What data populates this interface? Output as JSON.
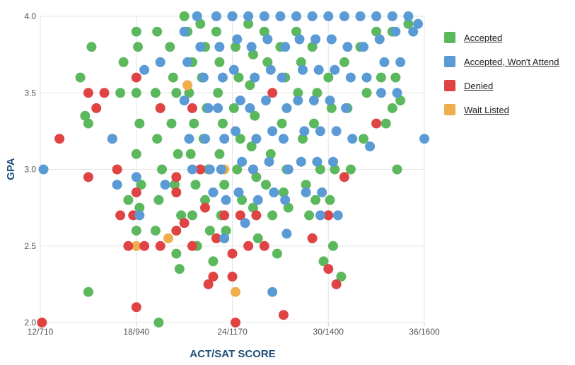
{
  "chart_data": {
    "type": "scatter",
    "title": "",
    "xlabel": "ACT/SAT SCORE",
    "ylabel": "GPA",
    "xlim": [
      12,
      36
    ],
    "ylim": [
      2.0,
      4.0
    ],
    "x_ticks": [
      {
        "value": 12,
        "label": "12/710"
      },
      {
        "value": 18,
        "label": "18/940"
      },
      {
        "value": 24,
        "label": "24/1170"
      },
      {
        "value": 30,
        "label": "30/1400"
      },
      {
        "value": 36,
        "label": "36/1600"
      }
    ],
    "y_ticks": [
      {
        "value": 2.0,
        "label": "2.0"
      },
      {
        "value": 2.5,
        "label": "2.5"
      },
      {
        "value": 3.0,
        "label": "3.0"
      },
      {
        "value": 3.5,
        "label": "3.5"
      },
      {
        "value": 4.0,
        "label": "4.0"
      }
    ],
    "grid": true,
    "legend_position": "right",
    "series": [
      {
        "name": "Accepted",
        "color": "#5cb85c",
        "points": [
          [
            14.5,
            3.6
          ],
          [
            15.2,
            3.8
          ],
          [
            15.0,
            3.3
          ],
          [
            14.8,
            3.35
          ],
          [
            17.2,
            3.7
          ],
          [
            17.0,
            3.5
          ],
          [
            15.0,
            2.2
          ],
          [
            17.5,
            2.8
          ],
          [
            18.0,
            3.9
          ],
          [
            18.1,
            3.8
          ],
          [
            18.0,
            3.5
          ],
          [
            18.2,
            3.3
          ],
          [
            18.0,
            3.1
          ],
          [
            18.3,
            2.9
          ],
          [
            18.2,
            2.75
          ],
          [
            18.0,
            2.6
          ],
          [
            19.3,
            3.9
          ],
          [
            19.5,
            3.7
          ],
          [
            19.2,
            3.5
          ],
          [
            19.5,
            3.4
          ],
          [
            19.3,
            3.2
          ],
          [
            19.6,
            3.0
          ],
          [
            19.4,
            2.8
          ],
          [
            19.2,
            2.6
          ],
          [
            19.4,
            2.0
          ],
          [
            20.1,
            3.8
          ],
          [
            20.3,
            3.6
          ],
          [
            20.5,
            3.5
          ],
          [
            20.2,
            3.3
          ],
          [
            20.6,
            3.1
          ],
          [
            20.4,
            2.9
          ],
          [
            20.8,
            2.7
          ],
          [
            20.5,
            2.45
          ],
          [
            20.7,
            2.35
          ],
          [
            21.0,
            4.0
          ],
          [
            21.2,
            3.9
          ],
          [
            21.5,
            3.7
          ],
          [
            21.3,
            3.5
          ],
          [
            21.6,
            3.3
          ],
          [
            21.4,
            3.1
          ],
          [
            21.7,
            2.9
          ],
          [
            21.5,
            2.7
          ],
          [
            21.8,
            2.5
          ],
          [
            22.0,
            3.95
          ],
          [
            22.3,
            3.8
          ],
          [
            22.1,
            3.6
          ],
          [
            22.4,
            3.4
          ],
          [
            22.2,
            3.2
          ],
          [
            22.5,
            3.0
          ],
          [
            22.3,
            2.8
          ],
          [
            22.6,
            2.6
          ],
          [
            22.8,
            2.4
          ],
          [
            23.0,
            3.9
          ],
          [
            23.2,
            3.7
          ],
          [
            23.1,
            3.5
          ],
          [
            23.4,
            3.3
          ],
          [
            23.2,
            3.1
          ],
          [
            23.5,
            2.9
          ],
          [
            23.3,
            2.7
          ],
          [
            23.6,
            2.6
          ],
          [
            24.0,
            4.0
          ],
          [
            24.2,
            3.8
          ],
          [
            24.4,
            3.6
          ],
          [
            24.1,
            3.4
          ],
          [
            24.5,
            3.2
          ],
          [
            24.3,
            3.0
          ],
          [
            24.6,
            2.8
          ],
          [
            25.0,
            3.95
          ],
          [
            25.3,
            3.75
          ],
          [
            25.1,
            3.55
          ],
          [
            25.4,
            3.35
          ],
          [
            25.2,
            3.15
          ],
          [
            25.5,
            2.95
          ],
          [
            25.3,
            2.75
          ],
          [
            25.6,
            2.55
          ],
          [
            26.0,
            3.9
          ],
          [
            26.2,
            3.7
          ],
          [
            26.4,
            3.1
          ],
          [
            26.1,
            2.9
          ],
          [
            26.5,
            2.7
          ],
          [
            26.8,
            2.45
          ],
          [
            27.0,
            3.8
          ],
          [
            27.3,
            3.6
          ],
          [
            27.1,
            3.3
          ],
          [
            27.4,
            3.0
          ],
          [
            27.2,
            2.85
          ],
          [
            27.5,
            2.75
          ],
          [
            28.0,
            3.9
          ],
          [
            28.3,
            3.7
          ],
          [
            28.1,
            3.5
          ],
          [
            28.4,
            3.2
          ],
          [
            28.6,
            2.9
          ],
          [
            28.8,
            2.7
          ],
          [
            29.0,
            3.8
          ],
          [
            29.3,
            3.5
          ],
          [
            29.1,
            3.3
          ],
          [
            29.5,
            3.0
          ],
          [
            29.2,
            2.8
          ],
          [
            29.7,
            2.4
          ],
          [
            30.0,
            3.6
          ],
          [
            30.2,
            3.4
          ],
          [
            30.4,
            3.0
          ],
          [
            30.1,
            2.8
          ],
          [
            30.3,
            2.5
          ],
          [
            30.8,
            2.3
          ],
          [
            31.0,
            3.7
          ],
          [
            31.2,
            3.4
          ],
          [
            31.4,
            3.0
          ],
          [
            32.0,
            3.8
          ],
          [
            32.4,
            3.5
          ],
          [
            32.2,
            3.2
          ],
          [
            33.0,
            3.9
          ],
          [
            33.3,
            3.6
          ],
          [
            33.6,
            3.3
          ],
          [
            34.0,
            3.9
          ],
          [
            34.2,
            3.6
          ],
          [
            34.5,
            3.45
          ],
          [
            34.3,
            3.0
          ],
          [
            34.0,
            3.4
          ],
          [
            35.0,
            3.95
          ]
        ]
      },
      {
        "name": "Accepted, Won't Attend",
        "color": "#5b9bd5",
        "points": [
          [
            12.2,
            3.0
          ],
          [
            16.5,
            3.2
          ],
          [
            16.8,
            2.9
          ],
          [
            18.0,
            2.95
          ],
          [
            18.2,
            2.7
          ],
          [
            18.5,
            3.65
          ],
          [
            19.5,
            3.7
          ],
          [
            19.8,
            2.9
          ],
          [
            21.0,
            3.9
          ],
          [
            21.2,
            3.7
          ],
          [
            21.0,
            3.45
          ],
          [
            21.3,
            3.2
          ],
          [
            21.5,
            3.0
          ],
          [
            21.8,
            4.0
          ],
          [
            22.0,
            3.8
          ],
          [
            22.2,
            3.6
          ],
          [
            22.5,
            3.4
          ],
          [
            22.3,
            3.2
          ],
          [
            22.6,
            3.0
          ],
          [
            22.8,
            2.85
          ],
          [
            23.0,
            4.0
          ],
          [
            23.2,
            3.8
          ],
          [
            23.4,
            3.6
          ],
          [
            23.1,
            3.4
          ],
          [
            23.5,
            3.2
          ],
          [
            23.3,
            3.0
          ],
          [
            23.6,
            2.8
          ],
          [
            23.5,
            2.55
          ],
          [
            24.0,
            4.0
          ],
          [
            24.3,
            3.85
          ],
          [
            24.1,
            3.65
          ],
          [
            24.5,
            3.45
          ],
          [
            24.2,
            3.25
          ],
          [
            24.6,
            3.05
          ],
          [
            24.4,
            2.85
          ],
          [
            24.8,
            2.65
          ],
          [
            25.0,
            4.0
          ],
          [
            25.2,
            3.8
          ],
          [
            25.4,
            3.6
          ],
          [
            25.1,
            3.4
          ],
          [
            25.5,
            3.2
          ],
          [
            25.3,
            3.0
          ],
          [
            25.6,
            2.8
          ],
          [
            26.0,
            4.0
          ],
          [
            26.2,
            3.85
          ],
          [
            26.4,
            3.65
          ],
          [
            26.1,
            3.45
          ],
          [
            26.5,
            3.25
          ],
          [
            26.3,
            3.05
          ],
          [
            26.6,
            2.85
          ],
          [
            26.5,
            2.2
          ],
          [
            27.0,
            4.0
          ],
          [
            27.3,
            3.8
          ],
          [
            27.1,
            3.6
          ],
          [
            27.4,
            3.4
          ],
          [
            27.2,
            3.2
          ],
          [
            27.5,
            3.0
          ],
          [
            27.3,
            2.8
          ],
          [
            27.4,
            2.58
          ],
          [
            28.0,
            4.0
          ],
          [
            28.2,
            3.85
          ],
          [
            28.4,
            3.65
          ],
          [
            28.1,
            3.45
          ],
          [
            28.5,
            3.25
          ],
          [
            28.3,
            3.05
          ],
          [
            28.6,
            2.85
          ],
          [
            29.0,
            4.0
          ],
          [
            29.2,
            3.85
          ],
          [
            29.4,
            3.65
          ],
          [
            29.1,
            3.45
          ],
          [
            29.5,
            3.25
          ],
          [
            29.3,
            3.05
          ],
          [
            29.6,
            2.85
          ],
          [
            29.5,
            2.7
          ],
          [
            30.0,
            4.0
          ],
          [
            30.2,
            3.85
          ],
          [
            30.4,
            3.65
          ],
          [
            30.1,
            3.45
          ],
          [
            30.5,
            3.25
          ],
          [
            30.3,
            3.05
          ],
          [
            30.6,
            2.7
          ],
          [
            31.0,
            4.0
          ],
          [
            31.2,
            3.8
          ],
          [
            31.4,
            3.6
          ],
          [
            31.1,
            3.4
          ],
          [
            31.5,
            3.2
          ],
          [
            32.0,
            4.0
          ],
          [
            32.2,
            3.8
          ],
          [
            32.4,
            3.6
          ],
          [
            32.6,
            3.15
          ],
          [
            33.0,
            4.0
          ],
          [
            33.2,
            3.85
          ],
          [
            33.5,
            3.7
          ],
          [
            33.3,
            3.5
          ],
          [
            34.0,
            4.0
          ],
          [
            34.2,
            3.9
          ],
          [
            34.5,
            3.7
          ],
          [
            34.3,
            3.5
          ],
          [
            35.0,
            4.0
          ],
          [
            35.3,
            3.9
          ],
          [
            35.6,
            3.95
          ],
          [
            36.0,
            3.2
          ]
        ]
      },
      {
        "name": "Denied",
        "color": "#e04343",
        "points": [
          [
            12.1,
            2.0
          ],
          [
            13.2,
            3.2
          ],
          [
            15.0,
            2.95
          ],
          [
            15.0,
            3.5
          ],
          [
            15.5,
            3.4
          ],
          [
            16.0,
            3.5
          ],
          [
            16.5,
            3.2
          ],
          [
            16.8,
            3.0
          ],
          [
            17.0,
            2.7
          ],
          [
            17.5,
            2.5
          ],
          [
            17.8,
            2.7
          ],
          [
            18.0,
            3.6
          ],
          [
            18.0,
            2.85
          ],
          [
            18.0,
            2.1
          ],
          [
            18.5,
            2.5
          ],
          [
            19.5,
            3.4
          ],
          [
            19.5,
            2.5
          ],
          [
            20.5,
            2.85
          ],
          [
            20.5,
            2.95
          ],
          [
            20.5,
            2.6
          ],
          [
            21.0,
            2.65
          ],
          [
            21.5,
            2.5
          ],
          [
            21.5,
            3.4
          ],
          [
            22.0,
            3.0
          ],
          [
            22.3,
            2.75
          ],
          [
            22.5,
            2.25
          ],
          [
            22.8,
            2.3
          ],
          [
            23.0,
            2.55
          ],
          [
            23.5,
            2.7
          ],
          [
            24.0,
            2.45
          ],
          [
            24.0,
            2.3
          ],
          [
            24.2,
            2.0
          ],
          [
            24.5,
            2.7
          ],
          [
            25.0,
            2.5
          ],
          [
            25.3,
            3.0
          ],
          [
            25.5,
            2.7
          ],
          [
            26.0,
            2.5
          ],
          [
            26.5,
            3.5
          ],
          [
            27.2,
            2.05
          ],
          [
            29.0,
            2.55
          ],
          [
            30.0,
            2.7
          ],
          [
            30.0,
            2.35
          ],
          [
            30.5,
            2.25
          ],
          [
            31.0,
            2.95
          ],
          [
            33.0,
            3.3
          ]
        ]
      },
      {
        "name": "Wait Listed",
        "color": "#f0ad4e",
        "points": [
          [
            18.0,
            2.5
          ],
          [
            20.0,
            2.55
          ],
          [
            21.2,
            3.55
          ],
          [
            23.5,
            3.0
          ],
          [
            24.2,
            2.2
          ]
        ]
      }
    ]
  }
}
